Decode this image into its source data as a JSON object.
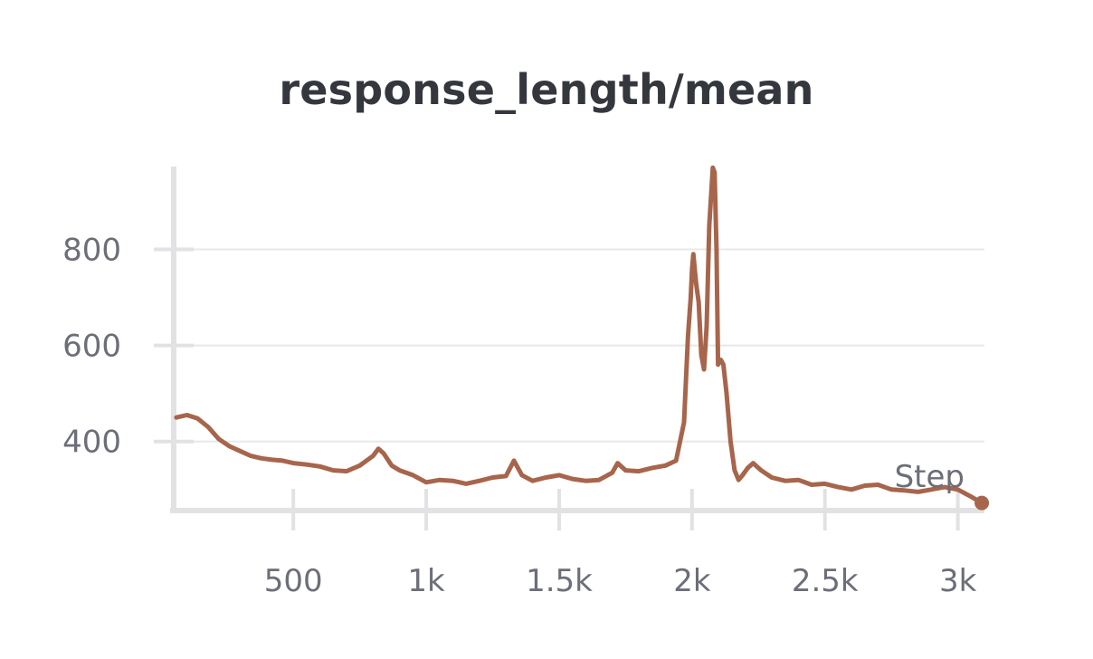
{
  "chart_data": {
    "type": "line",
    "title": "response_length/mean",
    "xlabel": "Step",
    "ylabel": "",
    "xlim": [
      50,
      3100
    ],
    "ylim": [
      260,
      980
    ],
    "x_ticks": [
      500,
      1000,
      1500,
      2000,
      2500,
      3000
    ],
    "x_tick_labels": [
      "500",
      "1k",
      "1.5k",
      "2k",
      "2.5k",
      "3k"
    ],
    "y_ticks": [
      400,
      600,
      800
    ],
    "y_tick_labels": [
      "400",
      "600",
      "800"
    ],
    "grid": true,
    "line_color": "#a7654c",
    "series": [
      {
        "x": [
          60,
          100,
          140,
          180,
          220,
          260,
          300,
          340,
          380,
          420,
          460,
          500,
          550,
          600,
          650,
          700,
          750,
          800,
          820,
          840,
          870,
          900,
          950,
          1000,
          1050,
          1100,
          1150,
          1200,
          1250,
          1300,
          1330,
          1360,
          1400,
          1450,
          1500,
          1550,
          1600,
          1650,
          1700,
          1720,
          1750,
          1800,
          1850,
          1900,
          1940,
          1970,
          1985,
          1995,
          2000,
          2005,
          2015,
          2025,
          2035,
          2045,
          2055,
          2065,
          2078,
          2085,
          2092,
          2098,
          2108,
          2118,
          2130,
          2145,
          2160,
          2175,
          2190,
          2210,
          2230,
          2260,
          2300,
          2350,
          2400,
          2450,
          2500,
          2550,
          2600,
          2650,
          2700,
          2750,
          2800,
          2850,
          2900,
          2950,
          3000,
          3050,
          3090
        ],
        "y": [
          450,
          455,
          448,
          430,
          405,
          390,
          380,
          370,
          365,
          362,
          360,
          355,
          352,
          348,
          340,
          338,
          350,
          370,
          385,
          375,
          350,
          340,
          330,
          315,
          320,
          318,
          312,
          318,
          325,
          328,
          360,
          330,
          318,
          325,
          330,
          322,
          318,
          320,
          335,
          355,
          340,
          338,
          345,
          350,
          360,
          440,
          620,
          700,
          760,
          790,
          730,
          690,
          580,
          550,
          640,
          850,
          970,
          960,
          800,
          560,
          570,
          560,
          500,
          400,
          340,
          320,
          330,
          345,
          355,
          340,
          325,
          318,
          320,
          310,
          312,
          305,
          300,
          308,
          310,
          300,
          298,
          295,
          300,
          305,
          300,
          285,
          272
        ]
      }
    ]
  }
}
